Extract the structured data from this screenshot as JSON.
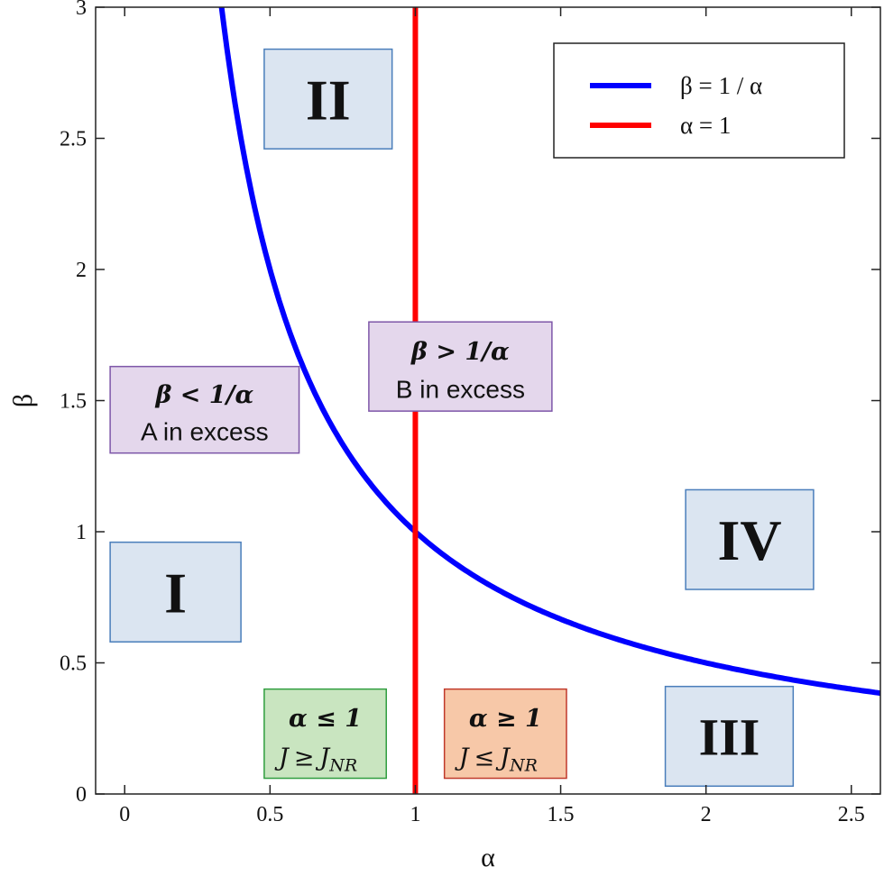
{
  "chart_data": {
    "type": "line",
    "xlabel": "α",
    "ylabel": "β",
    "xlim": [
      -0.1,
      2.6
    ],
    "ylim": [
      0,
      3
    ],
    "x_ticks": [
      0,
      0.5,
      1,
      1.5,
      2,
      2.5
    ],
    "x_tick_labels": [
      "0",
      "0.5",
      "1",
      "1.5",
      "2",
      "2.5"
    ],
    "y_ticks": [
      0,
      0.5,
      1,
      1.5,
      2,
      2.5,
      3
    ],
    "y_tick_labels": [
      "0",
      "0.5",
      "1",
      "1.5",
      "2",
      "2.5",
      "3"
    ],
    "grid": false,
    "legend_position": "top-right",
    "series": [
      {
        "name": "β = 1 / α",
        "color": "#0000ff",
        "function": "1/x",
        "x_range": [
          0.333,
          2.6
        ]
      },
      {
        "name": "α = 1",
        "color": "#ff0000",
        "vertical_at": 1
      }
    ],
    "annotations": {
      "regions": [
        {
          "label": "I",
          "x": [
            -0.05,
            0.4
          ],
          "y": [
            0.58,
            0.96
          ],
          "fill": "#dbe5f1",
          "stroke": "#4a7ebb"
        },
        {
          "label": "II",
          "x": [
            0.48,
            0.92
          ],
          "y": [
            2.46,
            2.84
          ],
          "fill": "#dbe5f1",
          "stroke": "#4a7ebb"
        },
        {
          "label": "III",
          "x": [
            1.86,
            2.3
          ],
          "y": [
            0.03,
            0.41
          ],
          "fill": "#dbe5f1",
          "stroke": "#4a7ebb"
        },
        {
          "label": "IV",
          "x": [
            1.93,
            2.37
          ],
          "y": [
            0.78,
            1.16
          ],
          "fill": "#dbe5f1",
          "stroke": "#4a7ebb"
        }
      ],
      "conditions": [
        {
          "math": "β < 1/α",
          "text": "A in excess",
          "x": [
            -0.05,
            0.6
          ],
          "y": [
            1.3,
            1.63
          ],
          "fill": "#e4d7ec",
          "stroke": "#7e57a8"
        },
        {
          "math": "β > 1/α",
          "text": "B in excess",
          "x": [
            0.84,
            1.47
          ],
          "y": [
            1.46,
            1.8
          ],
          "fill": "#e4d7ec",
          "stroke": "#7e57a8"
        }
      ],
      "j_boxes": [
        {
          "math": "α ≤ 1",
          "j_lhs": "J",
          "j_op": "≥",
          "j_rhs": "J",
          "j_sub": "NR",
          "x": [
            0.48,
            0.9
          ],
          "y": [
            0.06,
            0.4
          ],
          "fill": "#c9e5c0",
          "stroke": "#2f9e3f"
        },
        {
          "math": "α ≥ 1",
          "j_lhs": "J",
          "j_op": "≤",
          "j_rhs": "J",
          "j_sub": "NR",
          "x": [
            1.1,
            1.52
          ],
          "y": [
            0.06,
            0.4
          ],
          "fill": "#f7c8a8",
          "stroke": "#c0392b"
        }
      ]
    }
  }
}
